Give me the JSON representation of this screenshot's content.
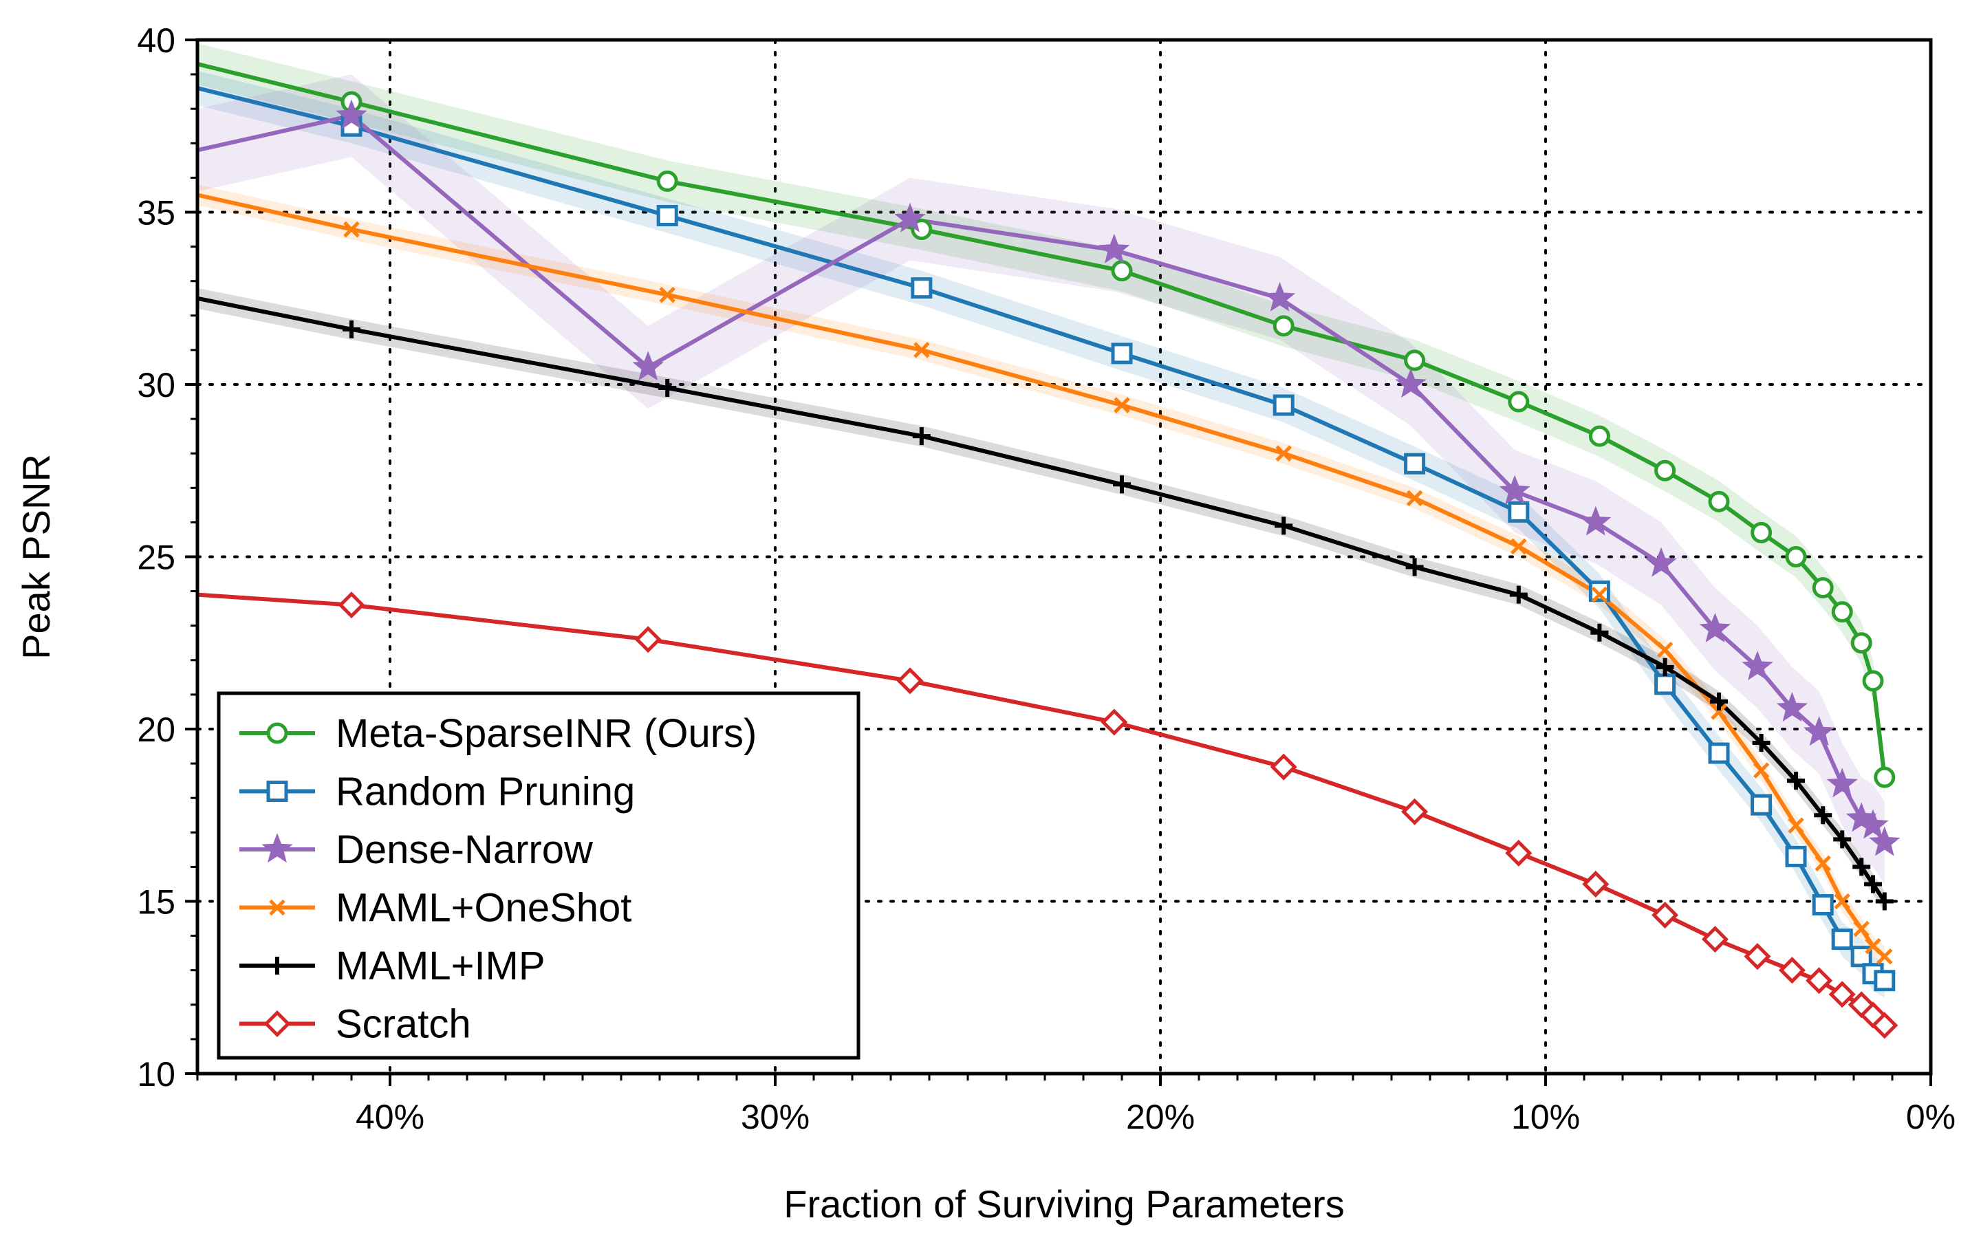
{
  "chart_data": {
    "type": "line",
    "title": "",
    "xlabel": "Fraction of Surviving Parameters",
    "ylabel": "Peak PSNR",
    "xlim": [
      45,
      0
    ],
    "ylim": [
      10,
      40
    ],
    "xticks": [
      40,
      30,
      20,
      10,
      0
    ],
    "xtick_labels": [
      "40%",
      "30%",
      "20%",
      "10%",
      "0%"
    ],
    "yticks": [
      10,
      15,
      20,
      25,
      30,
      35,
      40
    ],
    "ytick_labels": [
      "10",
      "15",
      "20",
      "25",
      "30",
      "35",
      "40"
    ],
    "grid": "dotted",
    "legend_position": "lower-left",
    "series": [
      {
        "name": "Meta-SparseINR (Ours)",
        "color": "#2ca02c",
        "marker": "circle",
        "band": 0.6,
        "x": [
          45,
          41,
          32.8,
          26.2,
          21,
          16.8,
          13.4,
          10.7,
          8.6,
          6.9,
          5.5,
          4.4,
          3.5,
          2.8,
          2.3,
          1.8,
          1.5,
          1.2
        ],
        "y": [
          39.3,
          38.2,
          35.9,
          34.5,
          33.3,
          31.7,
          30.7,
          29.5,
          28.5,
          27.5,
          26.6,
          25.7,
          25.0,
          24.1,
          23.4,
          22.5,
          21.4,
          18.6
        ]
      },
      {
        "name": "Random Pruning",
        "color": "#1f77b4",
        "marker": "square",
        "band": 0.5,
        "x": [
          45,
          41,
          32.8,
          26.2,
          21,
          16.8,
          13.4,
          10.7,
          8.6,
          6.9,
          5.5,
          4.4,
          3.5,
          2.8,
          2.3,
          1.8,
          1.5,
          1.2
        ],
        "y": [
          38.6,
          37.5,
          34.9,
          32.8,
          30.9,
          29.4,
          27.7,
          26.3,
          24.0,
          21.3,
          19.3,
          17.8,
          16.3,
          14.9,
          13.9,
          13.4,
          12.9,
          12.7
        ]
      },
      {
        "name": "Dense-Narrow",
        "color": "#9467bd",
        "marker": "star",
        "band": 1.2,
        "x": [
          45,
          41,
          33.3,
          26.5,
          21.2,
          16.9,
          13.5,
          10.8,
          8.7,
          7.0,
          5.6,
          4.5,
          3.6,
          2.9,
          2.3,
          1.8,
          1.5,
          1.2
        ],
        "y": [
          36.8,
          37.8,
          30.5,
          34.8,
          33.9,
          32.5,
          30.0,
          26.9,
          26.0,
          24.8,
          22.9,
          21.8,
          20.6,
          19.9,
          18.4,
          17.4,
          17.2,
          16.7
        ]
      },
      {
        "name": "MAML+OneShot",
        "color": "#ff7f0e",
        "marker": "x",
        "band": 0.3,
        "x": [
          45,
          41,
          32.8,
          26.2,
          21,
          16.8,
          13.4,
          10.7,
          8.6,
          6.9,
          5.5,
          4.4,
          3.5,
          2.8,
          2.3,
          1.8,
          1.5,
          1.2
        ],
        "y": [
          35.5,
          34.5,
          32.6,
          31.0,
          29.4,
          28.0,
          26.7,
          25.3,
          23.9,
          22.3,
          20.5,
          18.8,
          17.2,
          16.1,
          15.0,
          14.2,
          13.7,
          13.4
        ]
      },
      {
        "name": "MAML+IMP",
        "color": "#000000",
        "marker": "plus",
        "band": 0.3,
        "x": [
          45,
          41,
          32.8,
          26.2,
          21,
          16.8,
          13.4,
          10.7,
          8.6,
          6.9,
          5.5,
          4.4,
          3.5,
          2.8,
          2.3,
          1.8,
          1.5,
          1.2
        ],
        "y": [
          32.5,
          31.6,
          29.9,
          28.5,
          27.1,
          25.9,
          24.7,
          23.9,
          22.8,
          21.8,
          20.8,
          19.6,
          18.5,
          17.5,
          16.8,
          16.0,
          15.5,
          15.0
        ]
      },
      {
        "name": "Scratch",
        "color": "#d62728",
        "marker": "diamond",
        "band": 0,
        "x": [
          45,
          41,
          33.3,
          26.5,
          21.2,
          16.8,
          13.4,
          10.7,
          8.7,
          6.9,
          5.6,
          4.5,
          3.6,
          2.9,
          2.3,
          1.8,
          1.5,
          1.2
        ],
        "y": [
          23.9,
          23.6,
          22.6,
          21.4,
          20.2,
          18.9,
          17.6,
          16.4,
          15.5,
          14.6,
          13.9,
          13.4,
          13.0,
          12.7,
          12.3,
          12.0,
          11.7,
          11.4
        ]
      }
    ]
  }
}
